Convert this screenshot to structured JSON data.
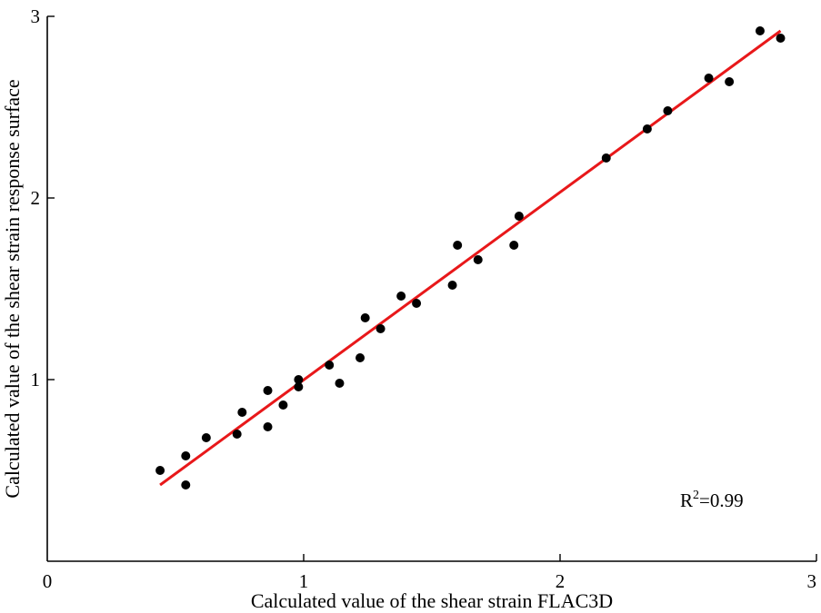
{
  "chart_data": {
    "type": "scatter",
    "xlabel": "Calculated value of the shear strain FLAC3D",
    "ylabel": "Calculated value of the shear strain response surface",
    "xlim": [
      0,
      3
    ],
    "ylim": [
      0,
      3
    ],
    "xticks": [
      "0",
      "1",
      "2",
      "3"
    ],
    "yticks": [
      "1",
      "2",
      "3"
    ],
    "grid": false,
    "annotation": {
      "prefix": "R",
      "superscript": "2",
      "suffix": "=0.99"
    },
    "points": [
      {
        "x": 0.44,
        "y": 0.5
      },
      {
        "x": 0.54,
        "y": 0.58
      },
      {
        "x": 0.54,
        "y": 0.42
      },
      {
        "x": 0.62,
        "y": 0.68
      },
      {
        "x": 0.74,
        "y": 0.7
      },
      {
        "x": 0.76,
        "y": 0.82
      },
      {
        "x": 0.86,
        "y": 0.94
      },
      {
        "x": 0.86,
        "y": 0.74
      },
      {
        "x": 0.92,
        "y": 0.86
      },
      {
        "x": 0.98,
        "y": 1.0
      },
      {
        "x": 0.98,
        "y": 0.96
      },
      {
        "x": 1.1,
        "y": 1.08
      },
      {
        "x": 1.14,
        "y": 0.98
      },
      {
        "x": 1.22,
        "y": 1.12
      },
      {
        "x": 1.24,
        "y": 1.34
      },
      {
        "x": 1.3,
        "y": 1.28
      },
      {
        "x": 1.38,
        "y": 1.46
      },
      {
        "x": 1.44,
        "y": 1.42
      },
      {
        "x": 1.58,
        "y": 1.52
      },
      {
        "x": 1.6,
        "y": 1.74
      },
      {
        "x": 1.68,
        "y": 1.66
      },
      {
        "x": 1.82,
        "y": 1.74
      },
      {
        "x": 1.84,
        "y": 1.9
      },
      {
        "x": 2.18,
        "y": 2.22
      },
      {
        "x": 2.34,
        "y": 2.38
      },
      {
        "x": 2.42,
        "y": 2.48
      },
      {
        "x": 2.58,
        "y": 2.66
      },
      {
        "x": 2.66,
        "y": 2.64
      },
      {
        "x": 2.78,
        "y": 2.92
      },
      {
        "x": 2.86,
        "y": 2.88
      }
    ],
    "fit_line": {
      "x": [
        0.44,
        2.86
      ],
      "y": [
        0.42,
        2.92
      ]
    },
    "colors": {
      "points": "#000000",
      "fit_line": "#e8181a",
      "axes": "#000000"
    }
  }
}
